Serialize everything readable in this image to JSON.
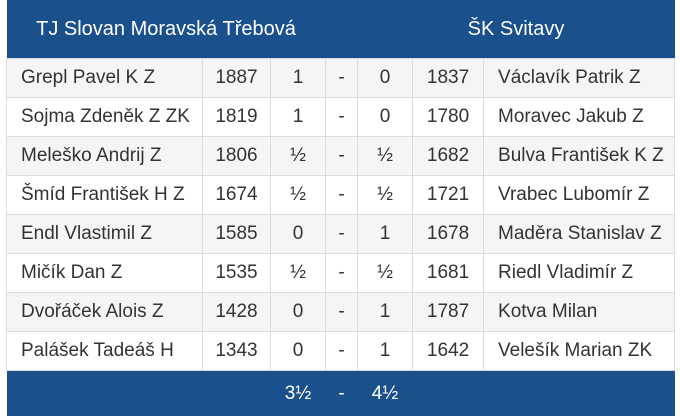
{
  "table": {
    "header": [
      "TJ Slovan Moravská Třebová",
      "ŠK Svitavy"
    ],
    "rows": [
      [
        "Grepl Pavel K Z",
        1887,
        1,
        "-",
        0,
        1837,
        "Václavík Patrik Z"
      ],
      [
        "Sojma Zdeněk Z ZK",
        1819,
        1,
        "-",
        0,
        1780,
        "Moravec Jakub Z"
      ],
      [
        "Meleško Andrij Z",
        1806,
        "½",
        "-",
        "½",
        1682,
        "Bulva František K Z"
      ],
      [
        "Šmíd František H Z",
        1674,
        "½",
        "-",
        "½",
        1721,
        "Vrabec Lubomír Z"
      ],
      [
        "Endl Vlastimil Z",
        1585,
        0,
        "-",
        1,
        1678,
        "Maděra Stanislav Z"
      ],
      [
        "Mičík Dan Z",
        1535,
        "½",
        "-",
        "½",
        1681,
        "Riedl Vladimír Z"
      ],
      [
        "Dvořáček Alois Z",
        1428,
        0,
        "-",
        1,
        1787,
        "Kotva Milan"
      ],
      [
        "Palášek Tadeáš H",
        1343,
        0,
        "-",
        1,
        1642,
        "Velešík Marian ZK"
      ]
    ],
    "footer": [
      "3½",
      "-",
      "4½"
    ]
  }
}
